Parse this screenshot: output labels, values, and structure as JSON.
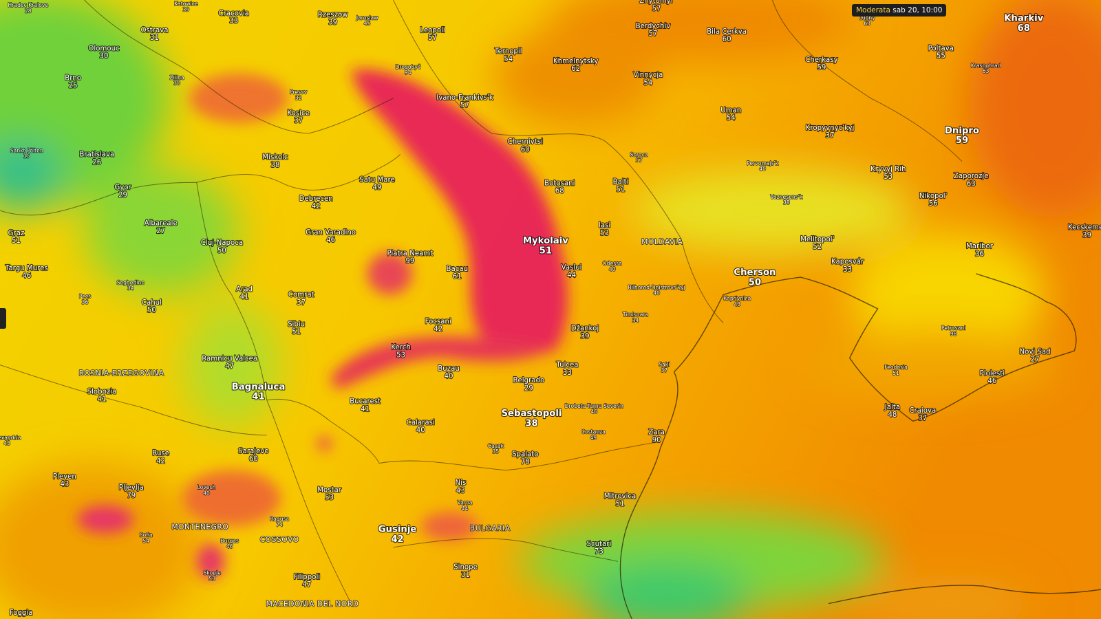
{
  "tooltip": {
    "level": "Moderata",
    "time": "sab 20, 10:00"
  },
  "cities": [
    {
      "name": "Hradec Kralove",
      "value": 28
    },
    {
      "name": "Katowice",
      "value": 39
    },
    {
      "name": "Cracovia",
      "value": 33
    },
    {
      "name": "Rzeszow",
      "value": 39
    },
    {
      "name": "Jaroslaw",
      "value": 45
    },
    {
      "name": "Leopoli",
      "value": 57
    },
    {
      "name": "Zhytomyr",
      "value": 57
    },
    {
      "name": "Ostrava",
      "value": 31
    },
    {
      "name": "Olomouc",
      "value": 30
    },
    {
      "name": "Berdychiv",
      "value": 57
    },
    {
      "name": "Bila Cerkva",
      "value": 60
    },
    {
      "name": "Lubny",
      "value": 63
    },
    {
      "name": "Kharkiv",
      "value": 68
    },
    {
      "name": "Ternopil",
      "value": 54
    },
    {
      "name": "Khmelnytsky",
      "value": 62
    },
    {
      "name": "Vinnycja",
      "value": 54
    },
    {
      "name": "Cherkasy",
      "value": 59
    },
    {
      "name": "Poltava",
      "value": 55
    },
    {
      "name": "Krasnohrad",
      "value": 63
    },
    {
      "name": "Drogobyč",
      "value": 94
    },
    {
      "name": "Brno",
      "value": 25
    },
    {
      "name": "Zilina",
      "value": 30
    },
    {
      "name": "Presov",
      "value": 32
    },
    {
      "name": "Ivano-Frankivs'k",
      "value": 57
    },
    {
      "name": "Kosice",
      "value": 37
    },
    {
      "name": "Uman",
      "value": 54
    },
    {
      "name": "Dnipro",
      "value": 59
    },
    {
      "name": "Chernivtsi",
      "value": 60
    },
    {
      "name": "Kropyvnyc'kyj",
      "value": 37
    },
    {
      "name": "Sankt Pölten",
      "value": 15
    },
    {
      "name": "Bratislava",
      "value": 26
    },
    {
      "name": "Miskolc",
      "value": 38
    },
    {
      "name": "Soroca",
      "value": 57
    },
    {
      "name": "Pervomajs'k",
      "value": 40
    },
    {
      "name": "Gyor",
      "value": 29
    },
    {
      "name": "Satu Mare",
      "value": 49
    },
    {
      "name": "Botosani",
      "value": 68
    },
    {
      "name": "Balti",
      "value": 51
    },
    {
      "name": "Kryvyj Rih",
      "value": 53
    },
    {
      "name": "Zaporozje",
      "value": 63
    },
    {
      "name": "Debrecen",
      "value": 42
    },
    {
      "name": "Voznesens'k",
      "value": 38
    },
    {
      "name": "Nikopol'",
      "value": 56
    },
    {
      "name": "Graz",
      "value": 51
    },
    {
      "name": "Albareale",
      "value": 27
    },
    {
      "name": "Gran Varadino",
      "value": 46
    },
    {
      "name": "Iasi",
      "value": 53
    },
    {
      "name": "Kecskemet",
      "value": 39
    },
    {
      "name": "Cluj-Napoca",
      "value": 50
    },
    {
      "name": "Piatra Neamt",
      "value": 99
    },
    {
      "name": "Mykolaiv",
      "value": 51
    },
    {
      "name": "Melitopol'",
      "value": 52
    },
    {
      "name": "Maribor",
      "value": 36
    },
    {
      "name": "Targu Mures",
      "value": 46
    },
    {
      "name": "Bacau",
      "value": 61
    },
    {
      "name": "Vaslui",
      "value": 44
    },
    {
      "name": "Odessa",
      "value": 40
    },
    {
      "name": "Cherson",
      "value": 50
    },
    {
      "name": "Kaposvár",
      "value": 33
    },
    {
      "name": "Seghedino",
      "value": 34
    },
    {
      "name": "Arad",
      "value": 41
    },
    {
      "name": "Comrat",
      "value": 37
    },
    {
      "name": "Bilhorod-Dnistrovs'kyj",
      "value": 40
    },
    {
      "name": "Koprivnica",
      "value": 43
    },
    {
      "name": "Pecs",
      "value": 36
    },
    {
      "name": "Cahul",
      "value": 50
    },
    {
      "name": "Timisoara",
      "value": 34
    },
    {
      "name": "Sibiu",
      "value": 51
    },
    {
      "name": "Focsani",
      "value": 42
    },
    {
      "name": "Džankoj",
      "value": 39
    },
    {
      "name": "Petrosani",
      "value": 98
    },
    {
      "name": "Kerch",
      "value": 53
    },
    {
      "name": "Novi Sad",
      "value": 27
    },
    {
      "name": "Ramnicu Valcea",
      "value": 47
    },
    {
      "name": "Buzau",
      "value": 40
    },
    {
      "name": "Tulcea",
      "value": 33
    },
    {
      "name": "Saki",
      "value": 37
    },
    {
      "name": "Feodosia",
      "value": 51
    },
    {
      "name": "Ploiesti",
      "value": 46
    },
    {
      "name": "Belgrado",
      "value": 29
    },
    {
      "name": "Bagnaluca",
      "value": 41
    },
    {
      "name": "Slobozia",
      "value": 41
    },
    {
      "name": "Drobeta-Turnu Severin",
      "value": 46
    },
    {
      "name": "Bucarest",
      "value": 41
    },
    {
      "name": "Sebastopoli",
      "value": 38
    },
    {
      "name": "Jalta",
      "value": 48
    },
    {
      "name": "Craiova",
      "value": 37
    },
    {
      "name": "Calarasi",
      "value": 40
    },
    {
      "name": "Costanza",
      "value": 49
    },
    {
      "name": "Zara",
      "value": 90
    },
    {
      "name": "Alexandria",
      "value": 43
    },
    {
      "name": "Cacak",
      "value": 35
    },
    {
      "name": "Sarajevo",
      "value": 60
    },
    {
      "name": "Ruse",
      "value": 42
    },
    {
      "name": "Spalato",
      "value": 78
    },
    {
      "name": "Pleven",
      "value": 43
    },
    {
      "name": "Nis",
      "value": 43
    },
    {
      "name": "Mostar",
      "value": 53
    },
    {
      "name": "Pljevlja",
      "value": 79
    },
    {
      "name": "Lovech",
      "value": 40
    },
    {
      "name": "Varna",
      "value": 44
    },
    {
      "name": "Mitrovica",
      "value": 51
    },
    {
      "name": "Ragusa",
      "value": 74
    },
    {
      "name": "Sofia",
      "value": 54
    },
    {
      "name": "Gusinje",
      "value": 42
    },
    {
      "name": "Burgas",
      "value": 46
    },
    {
      "name": "Scutari",
      "value": 73
    },
    {
      "name": "Skopje",
      "value": 53
    },
    {
      "name": "Filippoli",
      "value": 47
    },
    {
      "name": "Sinope",
      "value": 31
    }
  ],
  "regions": [
    "MOLDAVIA",
    "BOSNIA-ERZEGOVINA",
    "BULGARIA",
    "MONTENEGRO",
    "COSSOVO",
    "MACEDONIA DEL NORD",
    "Foggia"
  ]
}
